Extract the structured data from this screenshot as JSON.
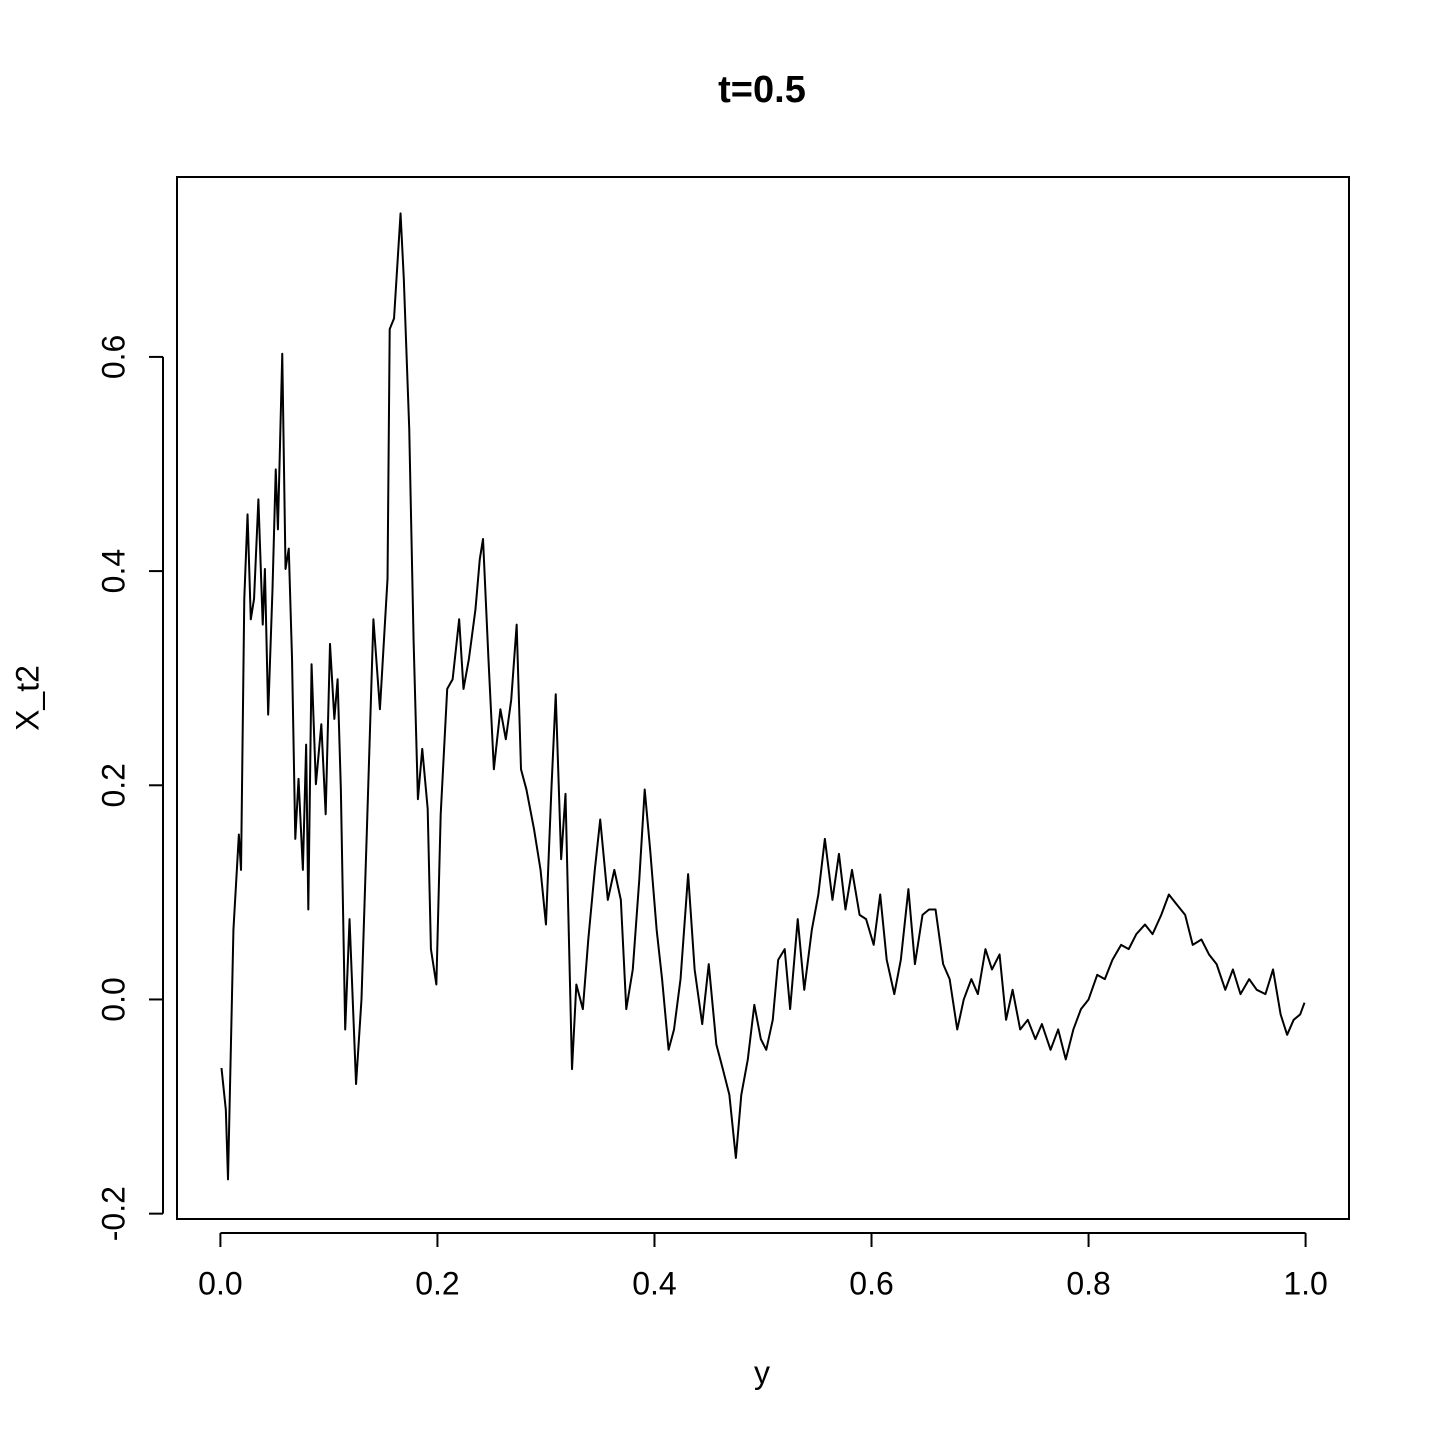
{
  "chart_data": {
    "type": "line",
    "title": "t=0.5",
    "x_label": "y",
    "y_label": "X_t2",
    "xlim": [
      -0.04,
      1.04
    ],
    "ylim": [
      -0.205,
      0.768
    ],
    "xticks": [
      {
        "value": 0,
        "label": "0.0"
      },
      0.2,
      0.4,
      0.6,
      0.8,
      {
        "value": 1,
        "label": "1.0"
      }
    ],
    "yticks": [
      -0.2,
      {
        "value": 0,
        "label": "0.0"
      },
      0.2,
      0.4,
      0.6
    ],
    "series": [
      {
        "color": "#000000",
        "x": [
          0.001,
          0.005,
          0.007,
          0.012,
          0.017,
          0.019,
          0.022,
          0.025,
          0.028,
          0.031,
          0.035,
          0.039,
          0.041,
          0.044,
          0.048,
          0.051,
          0.053,
          0.057,
          0.06,
          0.063,
          0.066,
          0.069,
          0.072,
          0.076,
          0.079,
          0.081,
          0.084,
          0.088,
          0.093,
          0.097,
          0.101,
          0.105,
          0.108,
          0.111,
          0.115,
          0.119,
          0.125,
          0.13,
          0.135,
          0.141,
          0.147,
          0.154,
          0.156,
          0.16,
          0.166,
          0.169,
          0.174,
          0.178,
          0.182,
          0.186,
          0.191,
          0.194,
          0.199,
          0.203,
          0.209,
          0.214,
          0.22,
          0.224,
          0.229,
          0.235,
          0.239,
          0.242,
          0.247,
          0.252,
          0.258,
          0.263,
          0.268,
          0.273,
          0.277,
          0.282,
          0.289,
          0.295,
          0.3,
          0.305,
          0.309,
          0.314,
          0.318,
          0.324,
          0.328,
          0.334,
          0.339,
          0.345,
          0.35,
          0.357,
          0.363,
          0.369,
          0.374,
          0.38,
          0.386,
          0.391,
          0.396,
          0.402,
          0.407,
          0.413,
          0.418,
          0.424,
          0.431,
          0.437,
          0.444,
          0.45,
          0.457,
          0.463,
          0.469,
          0.475,
          0.48,
          0.486,
          0.492,
          0.498,
          0.503,
          0.509,
          0.514,
          0.52,
          0.525,
          0.532,
          0.538,
          0.545,
          0.551,
          0.557,
          0.564,
          0.57,
          0.576,
          0.582,
          0.589,
          0.595,
          0.602,
          0.608,
          0.614,
          0.621,
          0.627,
          0.634,
          0.64,
          0.647,
          0.653,
          0.659,
          0.666,
          0.672,
          0.679,
          0.685,
          0.692,
          0.698,
          0.705,
          0.711,
          0.718,
          0.724,
          0.73,
          0.737,
          0.744,
          0.751,
          0.757,
          0.765,
          0.772,
          0.779,
          0.786,
          0.793,
          0.8,
          0.808,
          0.815,
          0.822,
          0.83,
          0.837,
          0.844,
          0.852,
          0.859,
          0.867,
          0.874,
          0.881,
          0.889,
          0.896,
          0.904,
          0.911,
          0.918,
          0.926,
          0.933,
          0.94,
          0.948,
          0.955,
          0.963,
          0.97,
          0.977,
          0.983,
          0.989,
          0.995,
          0.999
        ],
        "values": [
          -0.064,
          -0.103,
          -0.168,
          0.065,
          0.154,
          0.121,
          0.374,
          0.453,
          0.355,
          0.374,
          0.467,
          0.35,
          0.402,
          0.266,
          0.383,
          0.495,
          0.439,
          0.603,
          0.402,
          0.421,
          0.318,
          0.15,
          0.206,
          0.121,
          0.238,
          0.084,
          0.313,
          0.201,
          0.257,
          0.173,
          0.332,
          0.262,
          0.299,
          0.196,
          -0.028,
          0.075,
          -0.079,
          0,
          0.159,
          0.355,
          0.271,
          0.393,
          0.626,
          0.636,
          0.734,
          0.673,
          0.533,
          0.336,
          0.187,
          0.234,
          0.178,
          0.047,
          0.014,
          0.173,
          0.29,
          0.299,
          0.355,
          0.29,
          0.318,
          0.364,
          0.411,
          0.43,
          0.318,
          0.215,
          0.271,
          0.243,
          0.28,
          0.35,
          0.215,
          0.196,
          0.159,
          0.121,
          0.07,
          0.196,
          0.285,
          0.131,
          0.192,
          -0.065,
          0.014,
          -0.009,
          0.056,
          0.121,
          0.168,
          0.093,
          0.121,
          0.093,
          -0.009,
          0.028,
          0.112,
          0.196,
          0.14,
          0.065,
          0.019,
          -0.047,
          -0.028,
          0.019,
          0.117,
          0.028,
          -0.023,
          0.033,
          -0.042,
          -0.065,
          -0.089,
          -0.148,
          -0.089,
          -0.056,
          -0.005,
          -0.037,
          -0.047,
          -0.019,
          0.037,
          0.047,
          -0.009,
          0.075,
          0.009,
          0.065,
          0.098,
          0.15,
          0.093,
          0.136,
          0.084,
          0.121,
          0.079,
          0.075,
          0.051,
          0.098,
          0.037,
          0.005,
          0.037,
          0.103,
          0.033,
          0.079,
          0.084,
          0.084,
          0.033,
          0.019,
          -0.028,
          0,
          0.019,
          0.005,
          0.047,
          0.028,
          0.042,
          -0.019,
          0.009,
          -0.028,
          -0.019,
          -0.037,
          -0.023,
          -0.047,
          -0.028,
          -0.056,
          -0.028,
          -0.009,
          0,
          0.023,
          0.019,
          0.037,
          0.051,
          0.047,
          0.061,
          0.07,
          0.061,
          0.079,
          0.098,
          0.089,
          0.079,
          0.051,
          0.056,
          0.042,
          0.033,
          0.009,
          0.028,
          0.005,
          0.019,
          0.009,
          0.005,
          0.028,
          -0.014,
          -0.033,
          -0.019,
          -0.014,
          -0.003
        ]
      }
    ]
  }
}
